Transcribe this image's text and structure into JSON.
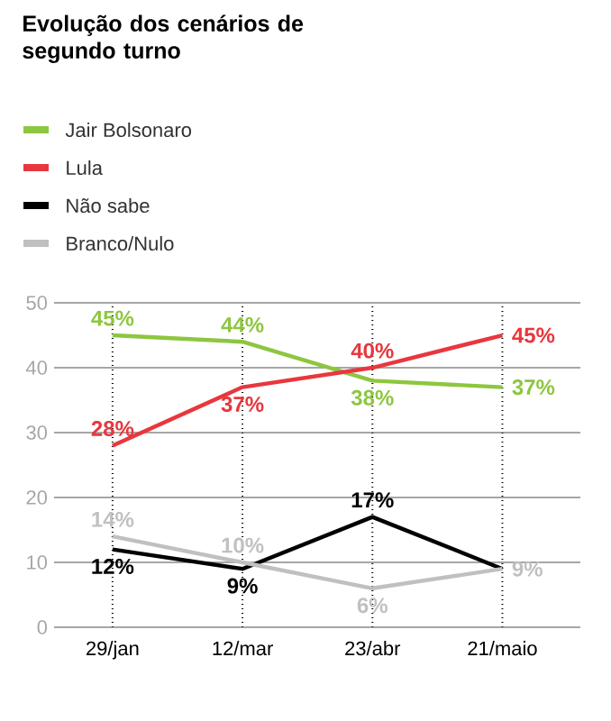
{
  "chart_data": {
    "type": "line",
    "title": "Evolução dos cenários de segundo turno",
    "categories": [
      "29/jan",
      "12/mar",
      "23/abr",
      "21/maio"
    ],
    "series": [
      {
        "name": "Jair Bolsonaro",
        "color": "#8dc63f",
        "values": [
          45,
          44,
          38,
          37
        ],
        "value_labels": [
          "45%",
          "44%",
          "38%",
          "37%"
        ]
      },
      {
        "name": "Lula",
        "color": "#e8373e",
        "values": [
          28,
          37,
          40,
          45
        ],
        "value_labels": [
          "28%",
          "37%",
          "40%",
          "45%"
        ]
      },
      {
        "name": "Não sabe",
        "color": "#000000",
        "values": [
          12,
          9,
          17,
          9
        ],
        "value_labels": [
          "12%",
          "9%",
          "17%",
          null
        ]
      },
      {
        "name": "Branco/Nulo",
        "color": "#c0c0c0",
        "values": [
          14,
          10,
          6,
          9
        ],
        "value_labels": [
          "14%",
          "10%",
          "6%",
          "9%"
        ]
      }
    ],
    "ylim": [
      0,
      50
    ],
    "yticks": [
      0,
      10,
      20,
      30,
      40,
      50
    ],
    "grid": true,
    "legend": "top left",
    "marker": "none",
    "line_style": "solid"
  }
}
